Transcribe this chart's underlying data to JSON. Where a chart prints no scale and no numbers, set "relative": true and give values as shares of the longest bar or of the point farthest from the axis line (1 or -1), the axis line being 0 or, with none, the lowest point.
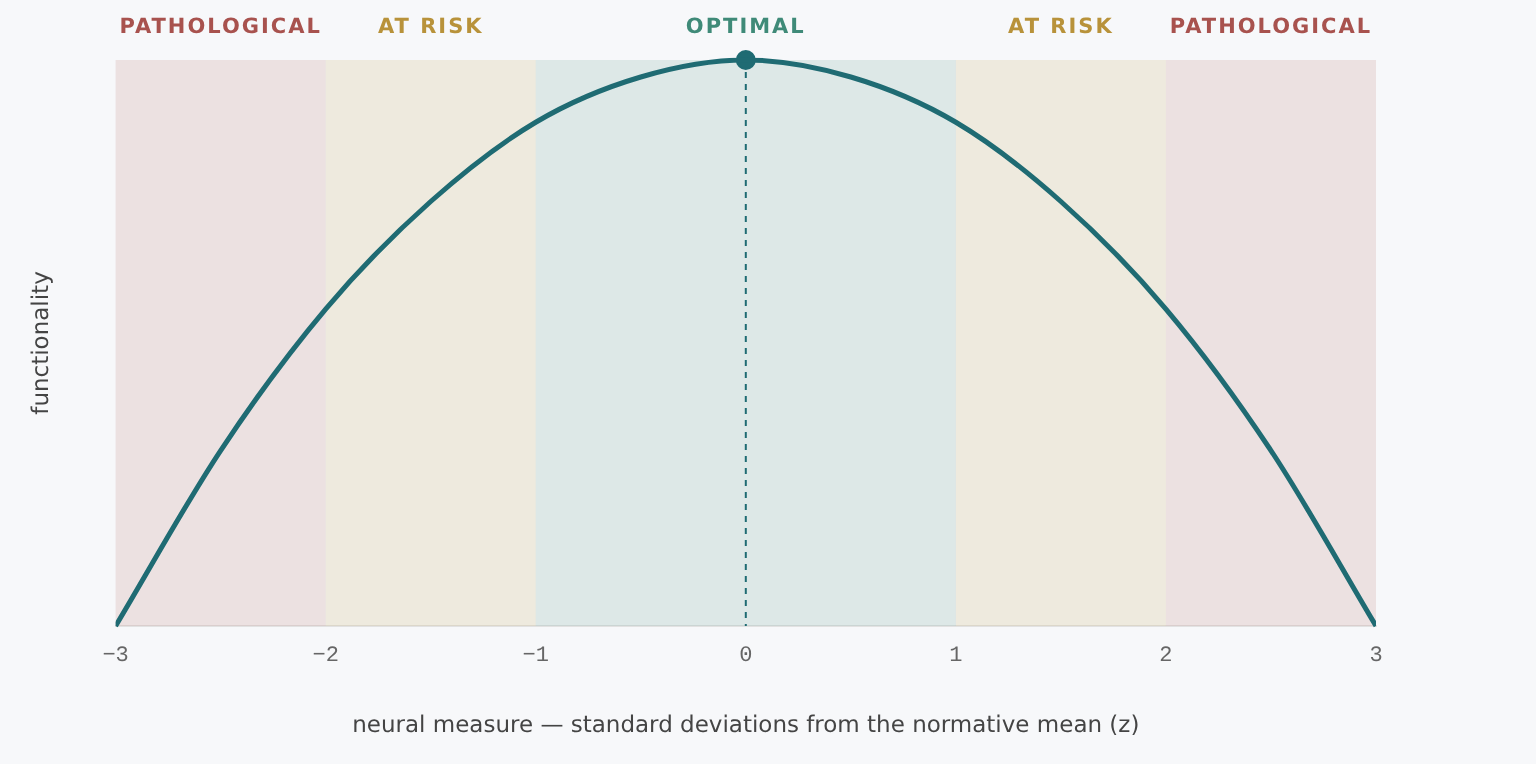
{
  "chart_data": {
    "type": "line",
    "relative": true,
    "xlabel": "neural measure — standard deviations from the normative mean (z)",
    "ylabel": "functionality",
    "x": [
      -3,
      -2.5,
      -2,
      -1.5,
      -1,
      -0.5,
      0,
      0.5,
      1,
      1.5,
      2,
      2.5,
      3
    ],
    "xlim": [
      -3,
      3
    ],
    "xticks": [
      {
        "value": -3,
        "label": "−3"
      },
      {
        "value": -2,
        "label": "−2"
      },
      {
        "value": -1,
        "label": "−1"
      },
      0,
      1,
      2,
      3
    ],
    "series": [
      {
        "color": "#1f6b73",
        "marker": "none",
        "values": [
          0,
          0.31,
          0.56,
          0.75,
          0.89,
          0.97,
          1,
          0.97,
          0.89,
          0.75,
          0.56,
          0.31,
          0
        ]
      },
      {
        "type": "scatter",
        "color": "#1f6b73",
        "marker": "circle",
        "x": [
          0
        ],
        "values": [
          1
        ]
      }
    ],
    "bands": [
      {
        "axis": "x",
        "from": -3,
        "to": -2,
        "label": "PATHOLOGICAL",
        "color": "#a8524e"
      },
      {
        "axis": "x",
        "from": -2,
        "to": -1,
        "label": "AT RISK",
        "color": "#b8923a"
      },
      {
        "axis": "x",
        "from": -1,
        "to": 1,
        "label": "OPTIMAL",
        "color": "#3f8a78"
      },
      {
        "axis": "x",
        "from": 1,
        "to": 2,
        "label": "AT RISK",
        "color": "#b8923a"
      },
      {
        "axis": "x",
        "from": 2,
        "to": 3,
        "label": "PATHOLOGICAL",
        "color": "#a8524e"
      }
    ],
    "ref_lines": [
      {
        "axis": "x",
        "value": 0,
        "color": "#1f6b73",
        "line_style": "dashed"
      }
    ],
    "grid": false,
    "legend": false
  }
}
